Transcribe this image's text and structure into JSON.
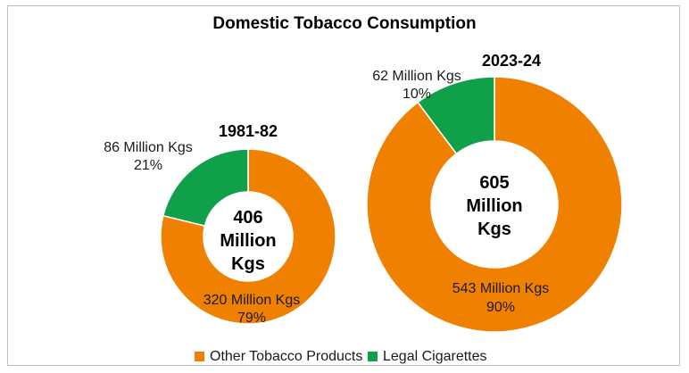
{
  "chart_data": {
    "type": "pie",
    "title": "Domestic Tobacco Consumption",
    "legend_position": "bottom",
    "legend": [
      {
        "name": "Other Tobacco Products",
        "color": "#F08100"
      },
      {
        "name": "Legal Cigarettes",
        "color": "#11A04A"
      }
    ],
    "charts": [
      {
        "year": "1981-82",
        "total": 406,
        "center": [
          "406",
          "Million",
          "Kgs"
        ],
        "slices": [
          {
            "name": "Other Tobacco Products",
            "value": 320,
            "label": "320 Million Kgs",
            "percent": "79%"
          },
          {
            "name": "Legal Cigarettes",
            "value": 86,
            "label": "86 Million Kgs",
            "percent": "21%"
          }
        ]
      },
      {
        "year": "2023-24",
        "total": 605,
        "center": [
          "605",
          "Million",
          "Kgs"
        ],
        "slices": [
          {
            "name": "Other Tobacco Products",
            "value": 543,
            "label": "543 Million Kgs",
            "percent": "90%"
          },
          {
            "name": "Legal Cigarettes",
            "value": 62,
            "label": "62 Million Kgs",
            "percent": "10%"
          }
        ]
      }
    ]
  }
}
